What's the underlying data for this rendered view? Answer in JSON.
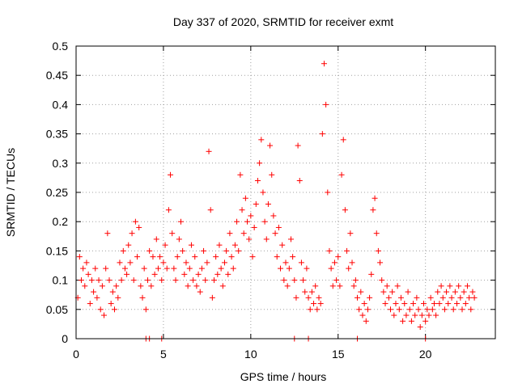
{
  "chart_data": {
    "type": "scatter",
    "title": "Day 337 of 2020, SRMTID for receiver exmt",
    "xlabel": "GPS time / hours",
    "ylabel": "SRMTID / TECUs",
    "xlim": [
      0,
      24
    ],
    "ylim": [
      0,
      0.5
    ],
    "xticks": [
      0,
      5,
      10,
      15,
      20
    ],
    "xtick_labels": [
      "0",
      "5",
      "10",
      "15",
      "20"
    ],
    "yticks": [
      0,
      0.05,
      0.1,
      0.15,
      0.2,
      0.25,
      0.3,
      0.35,
      0.4,
      0.45,
      0.5
    ],
    "ytick_labels": [
      "0",
      "0.05",
      "0.1",
      "0.15",
      "0.2",
      "0.25",
      "0.3",
      "0.35",
      "0.4",
      "0.45",
      "0.5"
    ],
    "grid": true,
    "marker": "plus",
    "color": "#ff0000",
    "series": [
      {
        "name": "SRMTID",
        "points": [
          [
            0.1,
            0.07
          ],
          [
            0.2,
            0.14
          ],
          [
            0.3,
            0.1
          ],
          [
            0.4,
            0.12
          ],
          [
            0.5,
            0.09
          ],
          [
            0.6,
            0.13
          ],
          [
            0.7,
            0.11
          ],
          [
            0.8,
            0.06
          ],
          [
            0.9,
            0.1
          ],
          [
            1.0,
            0.08
          ],
          [
            1.1,
            0.12
          ],
          [
            1.2,
            0.07
          ],
          [
            1.3,
            0.1
          ],
          [
            1.4,
            0.05
          ],
          [
            1.5,
            0.09
          ],
          [
            1.6,
            0.04
          ],
          [
            1.7,
            0.12
          ],
          [
            1.8,
            0.18
          ],
          [
            1.9,
            0.1
          ],
          [
            2.0,
            0.06
          ],
          [
            2.1,
            0.08
          ],
          [
            2.2,
            0.05
          ],
          [
            2.3,
            0.09
          ],
          [
            2.4,
            0.07
          ],
          [
            2.5,
            0.13
          ],
          [
            2.6,
            0.1
          ],
          [
            2.7,
            0.15
          ],
          [
            2.8,
            0.12
          ],
          [
            2.9,
            0.11
          ],
          [
            3.0,
            0.16
          ],
          [
            3.1,
            0.13
          ],
          [
            3.2,
            0.18
          ],
          [
            3.3,
            0.1
          ],
          [
            3.4,
            0.2
          ],
          [
            3.5,
            0.14
          ],
          [
            3.6,
            0.19
          ],
          [
            3.7,
            0.09
          ],
          [
            3.8,
            0.07
          ],
          [
            3.9,
            0.12
          ],
          [
            4.0,
            0.05
          ],
          [
            4.1,
            0.1
          ],
          [
            4.2,
            0.15
          ],
          [
            4.3,
            0.09
          ],
          [
            4.4,
            0.14
          ],
          [
            4.5,
            0.11
          ],
          [
            4.6,
            0.17
          ],
          [
            4.7,
            0.12
          ],
          [
            4.8,
            0.14
          ],
          [
            4.9,
            0.1
          ],
          [
            5.0,
            0.13
          ],
          [
            5.1,
            0.16
          ],
          [
            5.2,
            0.12
          ],
          [
            5.3,
            0.22
          ],
          [
            5.4,
            0.28
          ],
          [
            5.5,
            0.18
          ],
          [
            5.6,
            0.12
          ],
          [
            5.7,
            0.1
          ],
          [
            5.8,
            0.14
          ],
          [
            5.9,
            0.17
          ],
          [
            6.0,
            0.2
          ],
          [
            6.1,
            0.15
          ],
          [
            6.2,
            0.11
          ],
          [
            6.3,
            0.13
          ],
          [
            6.4,
            0.09
          ],
          [
            6.5,
            0.12
          ],
          [
            6.6,
            0.16
          ],
          [
            6.7,
            0.1
          ],
          [
            6.8,
            0.14
          ],
          [
            6.9,
            0.09
          ],
          [
            7.0,
            0.11
          ],
          [
            7.1,
            0.08
          ],
          [
            7.2,
            0.12
          ],
          [
            7.3,
            0.15
          ],
          [
            7.4,
            0.1
          ],
          [
            7.5,
            0.13
          ],
          [
            7.6,
            0.32
          ],
          [
            7.7,
            0.22
          ],
          [
            7.8,
            0.07
          ],
          [
            7.9,
            0.1
          ],
          [
            8.0,
            0.14
          ],
          [
            8.1,
            0.11
          ],
          [
            8.2,
            0.16
          ],
          [
            8.3,
            0.12
          ],
          [
            8.4,
            0.09
          ],
          [
            8.5,
            0.13
          ],
          [
            8.6,
            0.15
          ],
          [
            8.7,
            0.11
          ],
          [
            8.8,
            0.18
          ],
          [
            8.9,
            0.14
          ],
          [
            9.0,
            0.12
          ],
          [
            9.1,
            0.16
          ],
          [
            9.2,
            0.2
          ],
          [
            9.3,
            0.15
          ],
          [
            9.4,
            0.28
          ],
          [
            9.5,
            0.22
          ],
          [
            9.6,
            0.18
          ],
          [
            9.7,
            0.24
          ],
          [
            9.8,
            0.2
          ],
          [
            9.9,
            0.17
          ],
          [
            10.0,
            0.21
          ],
          [
            10.1,
            0.14
          ],
          [
            10.2,
            0.19
          ],
          [
            10.3,
            0.23
          ],
          [
            10.4,
            0.27
          ],
          [
            10.5,
            0.3
          ],
          [
            10.6,
            0.34
          ],
          [
            10.7,
            0.25
          ],
          [
            10.8,
            0.2
          ],
          [
            10.9,
            0.17
          ],
          [
            11.0,
            0.23
          ],
          [
            11.1,
            0.33
          ],
          [
            11.2,
            0.28
          ],
          [
            11.3,
            0.21
          ],
          [
            11.4,
            0.18
          ],
          [
            11.5,
            0.14
          ],
          [
            11.6,
            0.19
          ],
          [
            11.7,
            0.12
          ],
          [
            11.8,
            0.16
          ],
          [
            11.9,
            0.1
          ],
          [
            12.0,
            0.13
          ],
          [
            12.1,
            0.09
          ],
          [
            12.2,
            0.12
          ],
          [
            12.3,
            0.17
          ],
          [
            12.4,
            0.14
          ],
          [
            12.5,
            0.1
          ],
          [
            12.6,
            0.07
          ],
          [
            12.7,
            0.33
          ],
          [
            12.8,
            0.27
          ],
          [
            12.9,
            0.13
          ],
          [
            13.0,
            0.1
          ],
          [
            13.1,
            0.08
          ],
          [
            13.2,
            0.12
          ],
          [
            13.3,
            0.07
          ],
          [
            13.4,
            0.05
          ],
          [
            13.5,
            0.08
          ],
          [
            13.6,
            0.06
          ],
          [
            13.7,
            0.09
          ],
          [
            13.8,
            0.05
          ],
          [
            13.9,
            0.07
          ],
          [
            14.0,
            0.06
          ],
          [
            14.1,
            0.35
          ],
          [
            14.2,
            0.47
          ],
          [
            14.3,
            0.4
          ],
          [
            14.4,
            0.25
          ],
          [
            14.5,
            0.15
          ],
          [
            14.6,
            0.12
          ],
          [
            14.7,
            0.09
          ],
          [
            14.8,
            0.13
          ],
          [
            14.9,
            0.1
          ],
          [
            15.0,
            0.14
          ],
          [
            15.1,
            0.09
          ],
          [
            15.2,
            0.28
          ],
          [
            15.3,
            0.34
          ],
          [
            15.4,
            0.22
          ],
          [
            15.5,
            0.15
          ],
          [
            15.6,
            0.12
          ],
          [
            15.7,
            0.18
          ],
          [
            15.8,
            0.13
          ],
          [
            15.9,
            0.09
          ],
          [
            16.0,
            0.1
          ],
          [
            16.1,
            0.07
          ],
          [
            16.2,
            0.05
          ],
          [
            16.3,
            0.08
          ],
          [
            16.4,
            0.04
          ],
          [
            16.5,
            0.06
          ],
          [
            16.6,
            0.03
          ],
          [
            16.7,
            0.05
          ],
          [
            16.8,
            0.07
          ],
          [
            16.9,
            0.11
          ],
          [
            17.0,
            0.22
          ],
          [
            17.1,
            0.24
          ],
          [
            17.2,
            0.18
          ],
          [
            17.3,
            0.15
          ],
          [
            17.4,
            0.13
          ],
          [
            17.5,
            0.1
          ],
          [
            17.6,
            0.08
          ],
          [
            17.7,
            0.06
          ],
          [
            17.8,
            0.09
          ],
          [
            17.9,
            0.07
          ],
          [
            18.0,
            0.05
          ],
          [
            18.1,
            0.08
          ],
          [
            18.2,
            0.04
          ],
          [
            18.3,
            0.06
          ],
          [
            18.4,
            0.09
          ],
          [
            18.5,
            0.05
          ],
          [
            18.6,
            0.07
          ],
          [
            18.7,
            0.03
          ],
          [
            18.8,
            0.06
          ],
          [
            18.9,
            0.04
          ],
          [
            19.0,
            0.08
          ],
          [
            19.1,
            0.05
          ],
          [
            19.2,
            0.03
          ],
          [
            19.3,
            0.06
          ],
          [
            19.4,
            0.04
          ],
          [
            19.5,
            0.07
          ],
          [
            19.6,
            0.05
          ],
          [
            19.7,
            0.02
          ],
          [
            19.8,
            0.04
          ],
          [
            19.9,
            0.06
          ],
          [
            20.0,
            0.03
          ],
          [
            20.1,
            0.05
          ],
          [
            20.2,
            0.04
          ],
          [
            20.3,
            0.07
          ],
          [
            20.4,
            0.05
          ],
          [
            20.5,
            0.06
          ],
          [
            20.6,
            0.04
          ],
          [
            20.7,
            0.08
          ],
          [
            20.8,
            0.06
          ],
          [
            20.9,
            0.09
          ],
          [
            21.0,
            0.07
          ],
          [
            21.1,
            0.05
          ],
          [
            21.2,
            0.08
          ],
          [
            21.3,
            0.06
          ],
          [
            21.4,
            0.09
          ],
          [
            21.5,
            0.07
          ],
          [
            21.6,
            0.05
          ],
          [
            21.7,
            0.08
          ],
          [
            21.8,
            0.06
          ],
          [
            21.9,
            0.09
          ],
          [
            22.0,
            0.07
          ],
          [
            22.1,
            0.05
          ],
          [
            22.2,
            0.08
          ],
          [
            22.3,
            0.06
          ],
          [
            22.4,
            0.09
          ],
          [
            22.5,
            0.07
          ],
          [
            22.6,
            0.05
          ],
          [
            22.7,
            0.08
          ],
          [
            22.8,
            0.07
          ],
          [
            4.0,
            0.0
          ],
          [
            4.2,
            0.0
          ],
          [
            4.9,
            0.0
          ],
          [
            12.5,
            0.0
          ],
          [
            13.3,
            0.0
          ],
          [
            16.1,
            0.0
          ],
          [
            20.0,
            0.0
          ]
        ]
      }
    ]
  }
}
